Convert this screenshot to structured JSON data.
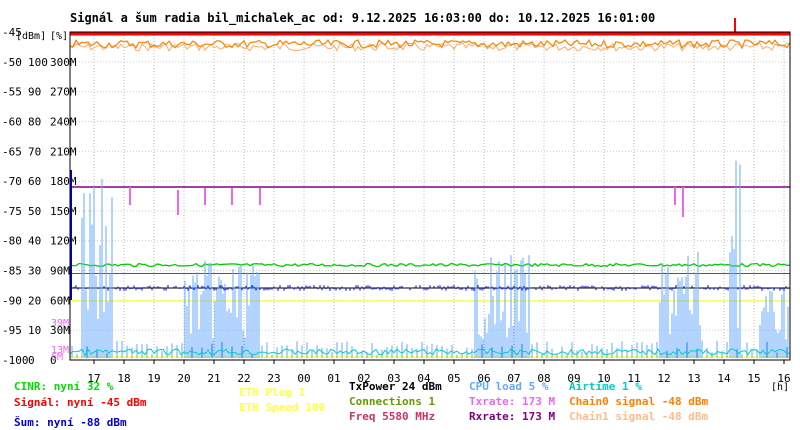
{
  "chart_data": {
    "type": "line",
    "title": "Signál a šum radia bil_michalek_ac od: 9.12.2025 16:03:00 do: 10.12.2025 16:01:00",
    "unit_labels": {
      "dbm": "[dBm]",
      "percent": "[%]",
      "hours": "[h]"
    },
    "axes": {
      "dbm": {
        "range": [
          -100,
          -45
        ],
        "ticks": [
          -45,
          -50,
          -55,
          -60,
          -65,
          -70,
          -75,
          -80,
          -85,
          -90,
          -95,
          -100
        ]
      },
      "percent": {
        "range": [
          0,
          100
        ],
        "ticks": [
          100,
          90,
          80,
          70,
          60,
          50,
          40,
          30,
          20,
          10,
          0
        ]
      },
      "rate": {
        "ticks": [
          "300M",
          "270M",
          "240M",
          "210M",
          "180M",
          "150M",
          "120M",
          "90M",
          "60M",
          "30M",
          "0"
        ]
      },
      "rate_extra": {
        "ticks": [
          "39M",
          "13M",
          "6M"
        ]
      },
      "x": {
        "ticks": [
          "17",
          "18",
          "19",
          "20",
          "21",
          "22",
          "23",
          "00",
          "01",
          "02",
          "03",
          "04",
          "05",
          "06",
          "07",
          "08",
          "09",
          "10",
          "11",
          "12",
          "13",
          "14",
          "15",
          "16"
        ]
      }
    },
    "series": [
      {
        "name": "Signál",
        "color": "#ff0000",
        "level_dbm": -45
      },
      {
        "name": "Chain0 signal",
        "color": "#ff8000",
        "level_dbm": -48
      },
      {
        "name": "Chain1 signal",
        "color": "#ffaa66",
        "level_dbm": -48
      },
      {
        "name": "Šum",
        "color": "#0000cc",
        "level_dbm": -88
      },
      {
        "name": "CINR",
        "color": "#00cc00",
        "level_percent": 32
      },
      {
        "name": "CPU load",
        "color": "#66aaff",
        "level_percent": 5
      },
      {
        "name": "Airtime",
        "color": "#00cccc",
        "level_percent": 1
      },
      {
        "name": "Txrate",
        "color": "#ee66ee",
        "level_rate": "173 M"
      },
      {
        "name": "Rxrate",
        "color": "#800080",
        "level_rate": "173 M"
      }
    ]
  },
  "legend": {
    "cinr": "CINR: nyní 32 %",
    "signal": "Signál: nyní -45 dBm",
    "noise": "Šum: nyní -88 dBm",
    "eth_plug": "ETH Plug 1",
    "eth_speed": "ETH Speed 100",
    "txpower": "TxPower 24 dBm",
    "connections": "Connections 1",
    "freq": "Freq 5580 MHz",
    "cpu": "CPU load 5 %",
    "txrate": "Txrate: 173 M",
    "rxrate": "Rxrate: 173 M",
    "airtime": "Airtime 1 %",
    "chain0": "Chain0 signal -48 dBm",
    "chain1": "Chain1 signal -48 dBm"
  },
  "colors": {
    "cinr": "#00dd00",
    "signal": "#ff0000",
    "noise": "#0000cc",
    "eth_plug": "#ffff44",
    "eth_speed": "#ffff44",
    "txpower": "#000000",
    "connections": "#669900",
    "freq": "#cc3366",
    "cpu": "#66aaff",
    "txrate": "#ee66ee",
    "rxrate": "#800080",
    "airtime": "#00cccc",
    "chain0": "#ff8000",
    "chain1": "#ffbb88"
  }
}
